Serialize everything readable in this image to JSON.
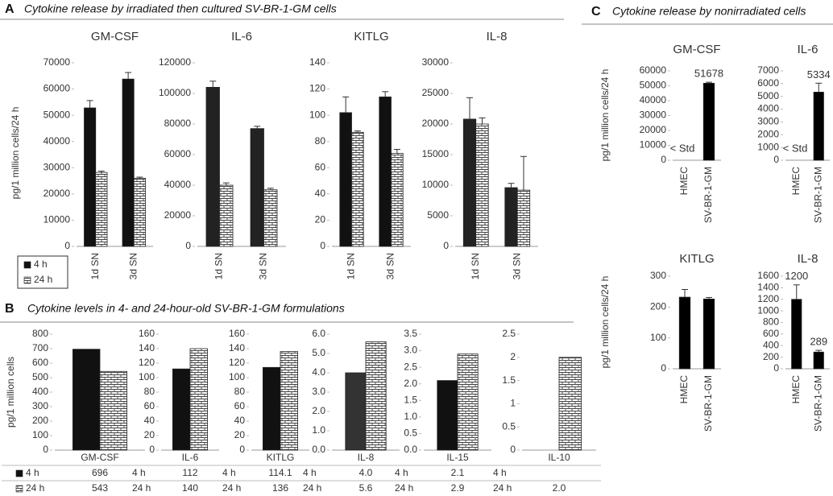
{
  "panels": [
    {
      "label": "A",
      "title": "Cytokine release by irradiated then cultured SV-BR-1-GM cells"
    },
    {
      "label": "B",
      "title": "Cytokine levels in 4- and 24-hour-old SV-BR-1-GM formulations"
    },
    {
      "label": "C",
      "title": "Cytokine release by nonirradiated  cells"
    }
  ],
  "chart_data": [
    {
      "type": "bar",
      "title": "GM-CSF",
      "ylabel": "pg/1 million cells/24 h",
      "categories": [
        "1d SN",
        "3d SN"
      ],
      "series": [
        {
          "name": "4 h",
          "color": "#111111",
          "values": [
            52800,
            63800
          ],
          "errors": [
            2800,
            2500
          ]
        },
        {
          "name": "24 h",
          "color": "#ffffff",
          "pattern": "brick",
          "values": [
            28200,
            26000
          ],
          "errors": [
            500,
            400
          ]
        }
      ],
      "ylim": [
        0,
        70000
      ],
      "yticks": [
        0,
        10000,
        20000,
        30000,
        40000,
        50000,
        60000,
        70000
      ]
    },
    {
      "type": "bar",
      "title": "IL-6",
      "categories": [
        "1d SN",
        "3d SN"
      ],
      "series": [
        {
          "color": "#222222",
          "values": [
            104000,
            77000
          ],
          "errors": [
            4000,
            1500
          ]
        },
        {
          "color": "#ffffff",
          "pattern": "brick",
          "values": [
            40000,
            37000
          ],
          "errors": [
            1500,
            1000
          ]
        }
      ],
      "ylim": [
        0,
        120000
      ],
      "yticks": [
        0,
        20000,
        40000,
        60000,
        80000,
        100000,
        120000
      ]
    },
    {
      "type": "bar",
      "title": "KITLG",
      "categories": [
        "1d SN",
        "3d SN"
      ],
      "series": [
        {
          "color": "#111111",
          "values": [
            102,
            114
          ],
          "errors": [
            12,
            4
          ]
        },
        {
          "color": "#ffffff",
          "pattern": "brick",
          "values": [
            87,
            71
          ],
          "errors": [
            1,
            3
          ]
        }
      ],
      "ylim": [
        0,
        140
      ],
      "yticks": [
        0,
        20,
        40,
        60,
        80,
        100,
        120,
        140
      ]
    },
    {
      "type": "bar",
      "title": "IL-8",
      "categories": [
        "1d SN",
        "3d SN"
      ],
      "series": [
        {
          "color": "#222222",
          "values": [
            20800,
            9600
          ],
          "errors": [
            3500,
            700
          ]
        },
        {
          "color": "#ffffff",
          "pattern": "brick",
          "values": [
            20000,
            9200
          ],
          "errors": [
            1000,
            5500
          ]
        }
      ],
      "ylim": [
        0,
        30000
      ],
      "yticks": [
        0,
        5000,
        10000,
        15000,
        20000,
        25000,
        30000
      ]
    },
    {
      "type": "bar",
      "ylabel": "pg/1 million cells",
      "categories": [
        "GM-CSF"
      ],
      "series": [
        {
          "name": "4 h",
          "color": "#111111",
          "values": [
            696
          ]
        },
        {
          "name": "24 h",
          "color": "#ffffff",
          "pattern": "brick",
          "values": [
            543
          ]
        }
      ],
      "ylim": [
        0,
        800
      ],
      "yticks": [
        0,
        100,
        200,
        300,
        400,
        500,
        600,
        700,
        800
      ]
    },
    {
      "type": "bar",
      "categories": [
        "IL-6"
      ],
      "series": [
        {
          "name": "4 h",
          "color": "#111111",
          "values": [
            112
          ]
        },
        {
          "name": "24 h",
          "color": "#ffffff",
          "pattern": "brick",
          "values": [
            140
          ]
        }
      ],
      "ylim": [
        0,
        160
      ],
      "yticks": [
        0,
        20,
        40,
        60,
        80,
        100,
        120,
        140,
        160
      ]
    },
    {
      "type": "bar",
      "categories": [
        "KITLG"
      ],
      "series": [
        {
          "name": "4 h",
          "color": "#111111",
          "values": [
            114.1
          ]
        },
        {
          "name": "24 h",
          "color": "#ffffff",
          "pattern": "brick",
          "values": [
            136
          ]
        }
      ],
      "ylim": [
        0,
        160
      ],
      "yticks": [
        0,
        20,
        40,
        60,
        80,
        100,
        120,
        140,
        160
      ]
    },
    {
      "type": "bar",
      "categories": [
        "IL-8"
      ],
      "series": [
        {
          "name": "4 h",
          "color": "#333333",
          "values": [
            4.0
          ],
          "value_labels": [
            "4.0"
          ]
        },
        {
          "name": "24 h",
          "color": "#ffffff",
          "pattern": "brick",
          "values": [
            5.6
          ]
        }
      ],
      "ylim": [
        0,
        6
      ],
      "yticks": [
        {
          "value": 0,
          "label": "0.0"
        },
        {
          "value": 1,
          "label": "1.0"
        },
        {
          "value": 2,
          "label": "2.0"
        },
        {
          "value": 3,
          "label": "3.0"
        },
        {
          "value": 4,
          "label": "4.0"
        },
        {
          "value": 5,
          "label": "5.0"
        },
        {
          "value": 6,
          "label": "6.0"
        }
      ]
    },
    {
      "type": "bar",
      "categories": [
        "IL-15"
      ],
      "series": [
        {
          "name": "4 h",
          "color": "#111111",
          "values": [
            2.1
          ]
        },
        {
          "name": "24 h",
          "color": "#ffffff",
          "pattern": "brick",
          "values": [
            2.9
          ]
        }
      ],
      "ylim": [
        0,
        3.5
      ],
      "yticks": [
        {
          "value": 0,
          "label": "0.0"
        },
        0.5,
        {
          "value": 1,
          "label": "1.0"
        },
        1.5,
        {
          "value": 2,
          "label": "2.0"
        },
        2.5,
        {
          "value": 3,
          "label": "3.0"
        },
        3.5
      ]
    },
    {
      "type": "bar",
      "categories": [
        "IL-10"
      ],
      "series": [
        {
          "name": "4 h",
          "color": "#111111",
          "values": [
            null
          ]
        },
        {
          "name": "24 h",
          "color": "#ffffff",
          "pattern": "brick",
          "values": [
            2.0
          ],
          "value_labels": [
            "2.0"
          ]
        }
      ],
      "ylim": [
        0,
        2.5
      ],
      "yticks": [
        0,
        0.5,
        1,
        1.5,
        2,
        2.5
      ]
    },
    {
      "type": "bar",
      "title": "GM-CSF",
      "ylabel": "pg/1 million cells/24 h",
      "categories": [
        "HMEC",
        "SV-BR-1-GM"
      ],
      "series": [
        {
          "color": "#000000",
          "values": [
            null,
            51678
          ],
          "value_labels": [
            "< Std",
            "51678"
          ],
          "errors": [
            null,
            700
          ]
        }
      ],
      "ylim": [
        0,
        60000
      ],
      "yticks": [
        0,
        10000,
        20000,
        30000,
        40000,
        50000,
        60000
      ]
    },
    {
      "type": "bar",
      "title": "IL-6",
      "categories": [
        "HMEC",
        "SV-BR-1-GM"
      ],
      "series": [
        {
          "color": "#000000",
          "values": [
            null,
            5334
          ],
          "value_labels": [
            "< Std",
            "5334"
          ],
          "errors": [
            null,
            700
          ]
        }
      ],
      "ylim": [
        0,
        7000
      ],
      "yticks": [
        0,
        1000,
        2000,
        3000,
        4000,
        5000,
        6000,
        7000
      ]
    },
    {
      "type": "bar",
      "title": "KITLG",
      "ylabel": "pg/1 million cells/24 h",
      "categories": [
        "HMEC",
        "SV-BR-1-GM"
      ],
      "series": [
        {
          "color": "#000000",
          "values": [
            232,
            226
          ],
          "errors": [
            25,
            5
          ]
        }
      ],
      "ylim": [
        0,
        300
      ],
      "yticks": [
        0,
        100,
        200,
        300
      ]
    },
    {
      "type": "bar",
      "title": "IL-8",
      "categories": [
        "HMEC",
        "SV-BR-1-GM"
      ],
      "series": [
        {
          "color": "#000000",
          "values": [
            1200,
            289
          ],
          "value_labels": [
            "1200",
            "289"
          ],
          "errors": [
            250,
            30
          ]
        }
      ],
      "ylim": [
        0,
        1600
      ],
      "yticks": [
        0,
        200,
        400,
        600,
        800,
        1000,
        1200,
        1400,
        1600
      ]
    }
  ]
}
